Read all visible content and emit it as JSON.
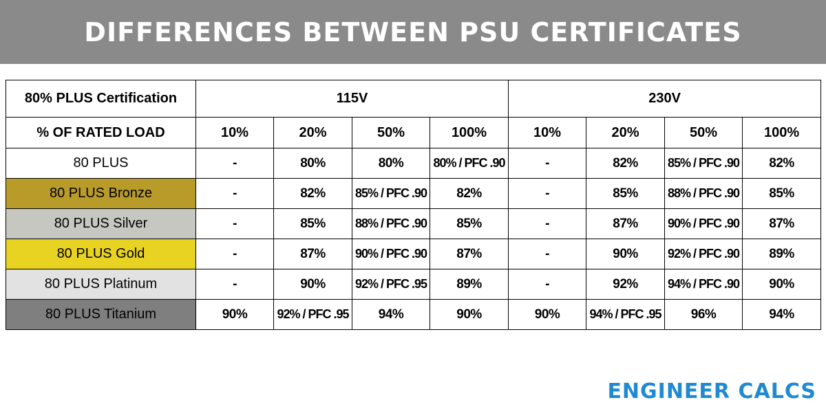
{
  "title": "DIFFERENCES BETWEEN PSU CERTIFICATES",
  "table": {
    "header_label": "80% PLUS Certification",
    "voltage_groups": [
      "115V",
      "230V"
    ],
    "load_label": "% OF RATED LOAD",
    "load_columns": [
      "10%",
      "20%",
      "50%",
      "100%",
      "10%",
      "20%",
      "50%",
      "100%"
    ],
    "rows": [
      {
        "name": "80 PLUS",
        "color": "#ffffff",
        "values": [
          "-",
          "80%",
          "80%",
          "80% / PFC .90",
          "-",
          "82%",
          "85% / PFC .90",
          "82%"
        ]
      },
      {
        "name": "80 PLUS Bronze",
        "color": "#b99b2a",
        "values": [
          "-",
          "82%",
          "85% / PFC .90",
          "82%",
          "-",
          "85%",
          "88% / PFC .90",
          "85%"
        ]
      },
      {
        "name": "80 PLUS Silver",
        "color": "#c7c7c2",
        "values": [
          "-",
          "85%",
          "88% / PFC .90",
          "85%",
          "-",
          "87%",
          "90% / PFC .90",
          "87%"
        ]
      },
      {
        "name": "80 PLUS Gold",
        "color": "#e8d222",
        "values": [
          "-",
          "87%",
          "90% / PFC .90",
          "87%",
          "-",
          "90%",
          "92% / PFC .90",
          "89%"
        ]
      },
      {
        "name": "80 PLUS Platinum",
        "color": "#e2e2e2",
        "values": [
          "-",
          "90%",
          "92% / PFC .95",
          "89%",
          "-",
          "92%",
          "94% / PFC .90",
          "90%"
        ]
      },
      {
        "name": "80 PLUS Titanium",
        "color": "#7f7f7f",
        "values": [
          "90%",
          "92% / PFC .95",
          "94%",
          "90%",
          "90%",
          "94% / PFC .95",
          "96%",
          "94%"
        ]
      }
    ]
  },
  "logo": "ENGINEER CALCS"
}
